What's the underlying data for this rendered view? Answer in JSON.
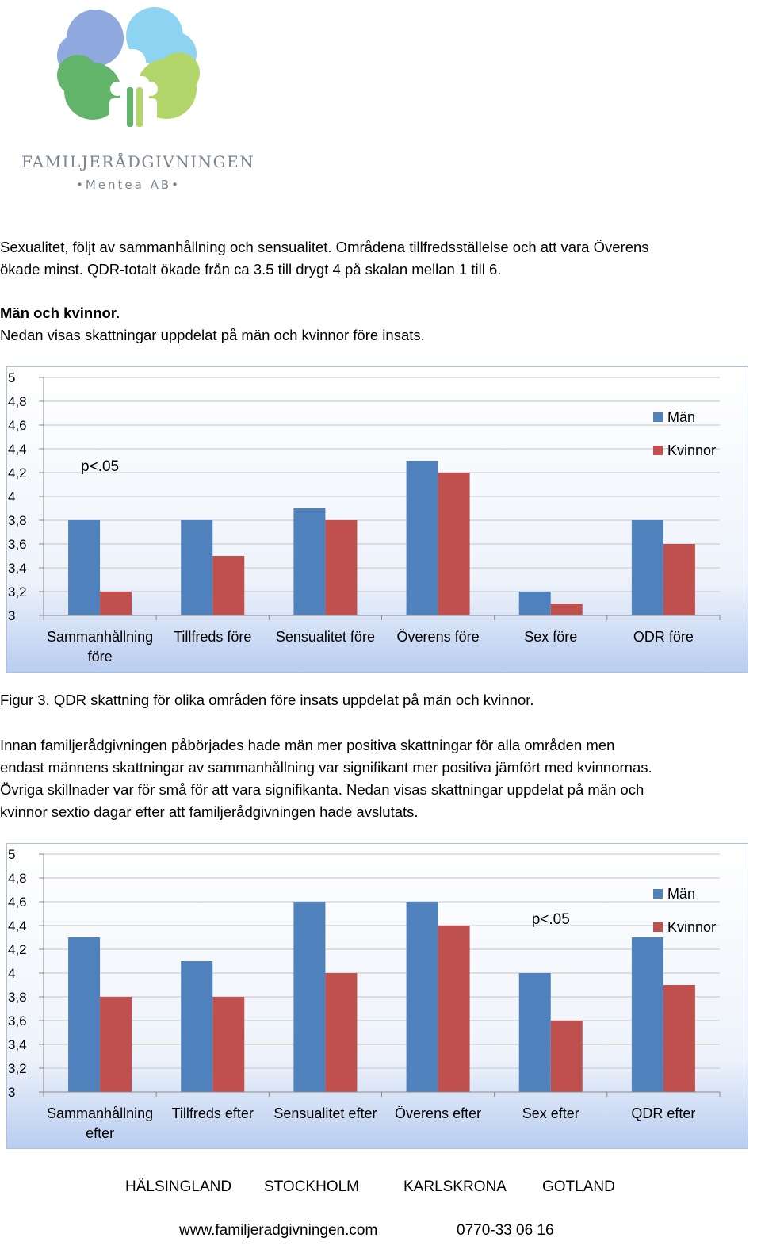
{
  "logo": {
    "name": "FAMILJERÅDGIVNINGEN",
    "tagline": "•Mentea AB•"
  },
  "paragraphs": {
    "p1_line1": "Sexualitet, följt av sammanhållning och sensualitet. Områdena tillfredsställelse och att vara Överens",
    "p1_line2": "ökade minst. QDR-totalt ökade från ca 3.5 till drygt 4 på skalan mellan 1 till 6.",
    "heading": "Män och kvinnor.",
    "p2": "Nedan visas skattningar uppdelat på män och kvinnor före insats.",
    "caption": "Figur 3. QDR skattning för olika områden före insats uppdelat på män och kvinnor.",
    "p3_line1": "Innan familjerådgivningen påbörjades hade män mer positiva skattningar för alla områden men",
    "p3_line2": "endast männens skattningar av sammanhållning var signifikant mer positiva jämfört med kvinnornas.",
    "p3_line3": "Övriga skillnader var för små för att vara signifikanta. Nedan visas skattningar uppdelat på män och",
    "p3_line4": "kvinnor sextio dagar efter att familjerådgivningen hade avslutats."
  },
  "chart_data": [
    {
      "type": "bar",
      "categories": [
        [
          "Sammanhållning",
          "före"
        ],
        [
          "Tillfreds före"
        ],
        [
          "Sensualitet före"
        ],
        [
          "Överens före"
        ],
        [
          "Sex före"
        ],
        [
          "ODR före"
        ]
      ],
      "series": [
        {
          "name": "Män",
          "values": [
            3.8,
            3.8,
            3.9,
            4.3,
            3.2,
            3.8
          ],
          "color": "#4f81bd"
        },
        {
          "name": "Kvinnor",
          "values": [
            3.2,
            3.5,
            3.8,
            4.2,
            3.1,
            3.6
          ],
          "color": "#c0504d"
        }
      ],
      "ylim": [
        3,
        5
      ],
      "yticks": [
        "5",
        "4,8",
        "4,6",
        "4,4",
        "4,2",
        "4",
        "3,8",
        "3,6",
        "3,4",
        "3,2",
        "3"
      ],
      "annotation": {
        "text": "p<.05",
        "category": 0,
        "value": 4.2
      },
      "legend": "top-right",
      "grid": true
    },
    {
      "type": "bar",
      "categories": [
        [
          "Sammanhållning",
          "efter"
        ],
        [
          "Tillfreds efter"
        ],
        [
          "Sensualitet efter"
        ],
        [
          "Överens efter"
        ],
        [
          "Sex efter"
        ],
        [
          "QDR efter"
        ]
      ],
      "series": [
        {
          "name": "Män",
          "values": [
            4.3,
            4.1,
            4.6,
            4.6,
            4.0,
            4.3
          ],
          "color": "#4f81bd"
        },
        {
          "name": "Kvinnor",
          "values": [
            3.8,
            3.8,
            4.0,
            4.4,
            3.6,
            3.9
          ],
          "color": "#c0504d"
        }
      ],
      "ylim": [
        3,
        5
      ],
      "yticks": [
        "5",
        "4,8",
        "4,6",
        "4,4",
        "4,2",
        "4",
        "3,8",
        "3,6",
        "3,4",
        "3,2",
        "3"
      ],
      "annotation": {
        "text": "p<.05",
        "category": 4,
        "value": 4.4
      },
      "legend": "top-right",
      "grid": true
    }
  ],
  "footer": {
    "cities": [
      "HÄLSINGLAND",
      "STOCKHOLM",
      "KARLSKRONA",
      "GOTLAND"
    ],
    "website": "www.familjeradgivningen.com",
    "phone": "0770-33 06 16"
  }
}
